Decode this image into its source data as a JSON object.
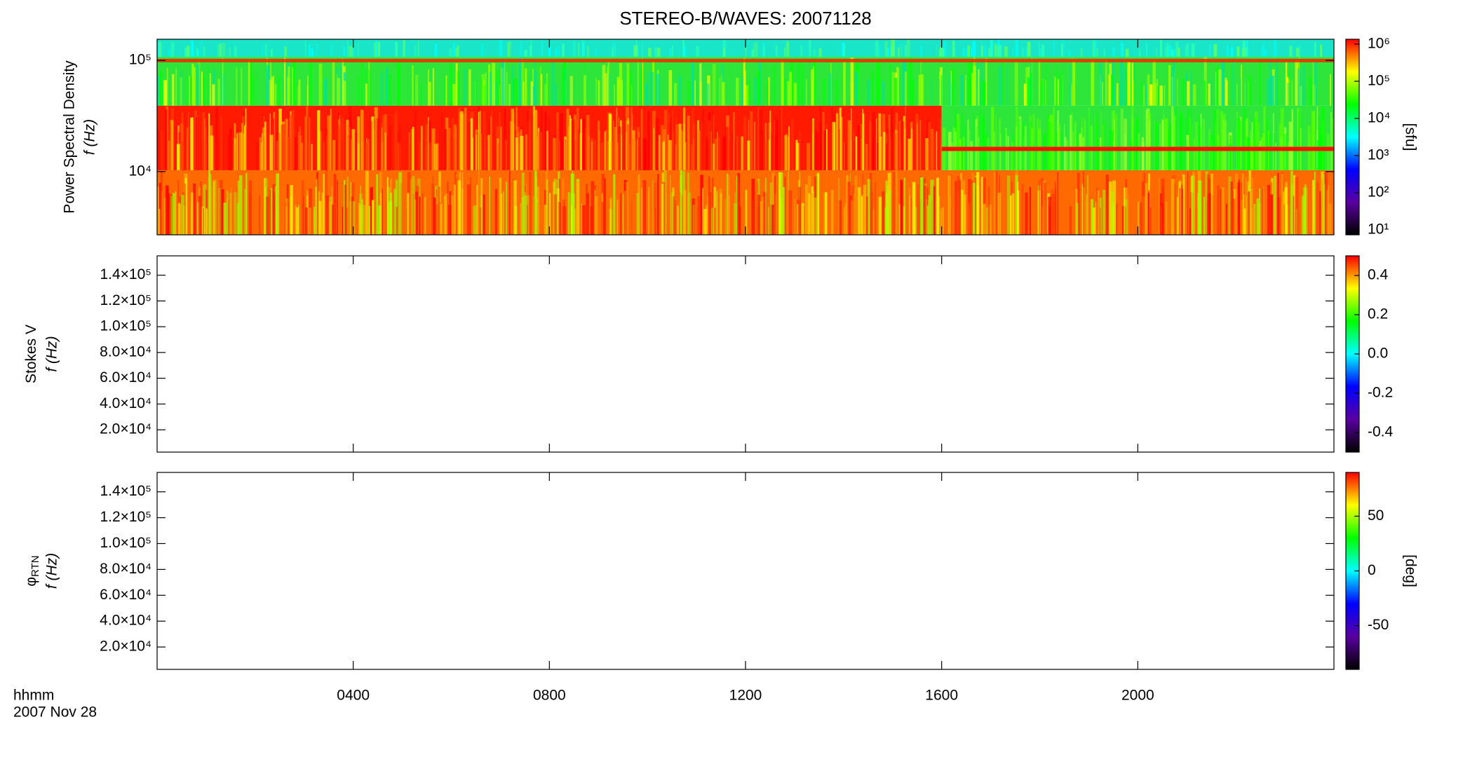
{
  "title": "STEREO-B/WAVES: 20071128",
  "x_axis": {
    "xlim": [
      0,
      24
    ],
    "xticks": [
      {
        "value": 4,
        "label": "0400"
      },
      {
        "value": 8,
        "label": "0800"
      },
      {
        "value": 12,
        "label": "1200"
      },
      {
        "value": 16,
        "label": "1600"
      },
      {
        "value": 20,
        "label": "2000"
      }
    ],
    "label": "hhmm",
    "date": "2007 Nov 28"
  },
  "chart_data": [
    {
      "type": "spectrogram",
      "ylabel": "Power Spectral Density",
      "ylabel2": "f (Hz)",
      "yscale": "log",
      "ylim": [
        2700,
        155000
      ],
      "yticks": [
        {
          "value": 10000,
          "label": "10⁴"
        },
        {
          "value": 100000,
          "label": "10⁵"
        }
      ],
      "colorbar": {
        "scale": "log",
        "clim": [
          7.4,
          1350000
        ],
        "colormap": "rainbow",
        "label": "[sfu]",
        "ticks": [
          {
            "value": 10,
            "label": "10¹"
          },
          {
            "value": 100,
            "label": "10²"
          },
          {
            "value": 1000,
            "label": "10³"
          },
          {
            "value": 10000,
            "label": "10⁴"
          },
          {
            "value": 100000,
            "label": "10⁵"
          },
          {
            "value": 1000000,
            "label": "10⁶"
          }
        ]
      }
    },
    {
      "type": "empty",
      "ylabel": "Stokes V",
      "ylabel2": "f (Hz)",
      "yscale": "linear",
      "ylim": [
        2700,
        155000
      ],
      "yticks": [
        {
          "value": 20000,
          "label": "2.0×10⁴"
        },
        {
          "value": 40000,
          "label": "4.0×10⁴"
        },
        {
          "value": 60000,
          "label": "6.0×10⁴"
        },
        {
          "value": 80000,
          "label": "8.0×10⁴"
        },
        {
          "value": 100000,
          "label": "1.0×10⁵"
        },
        {
          "value": 120000,
          "label": "1.2×10⁵"
        },
        {
          "value": 140000,
          "label": "1.4×10⁵"
        }
      ],
      "colorbar": {
        "scale": "linear",
        "clim": [
          -0.5,
          0.5
        ],
        "colormap": "rainbow",
        "ticks": [
          -0.4,
          -0.2,
          {
            "value": 0,
            "label": "0.0"
          },
          0.2,
          0.4
        ]
      }
    },
    {
      "type": "empty",
      "ylabel": "φ",
      "ylabel_subscript": "RTN",
      "ylabel2": "f (Hz)",
      "yscale": "linear",
      "ylim": [
        2700,
        155000
      ],
      "yticks": [
        {
          "value": 20000,
          "label": "2.0×10⁴"
        },
        {
          "value": 40000,
          "label": "4.0×10⁴"
        },
        {
          "value": 60000,
          "label": "6.0×10⁴"
        },
        {
          "value": 80000,
          "label": "8.0×10⁴"
        },
        {
          "value": 100000,
          "label": "1.0×10⁵"
        },
        {
          "value": 120000,
          "label": "1.2×10⁵"
        },
        {
          "value": 140000,
          "label": "1.4×10⁵"
        }
      ],
      "colorbar": {
        "scale": "linear",
        "clim": [
          -90,
          90
        ],
        "colormap": "rainbow",
        "label": "[deg]",
        "ticks": [
          -50,
          0,
          50
        ]
      }
    }
  ]
}
